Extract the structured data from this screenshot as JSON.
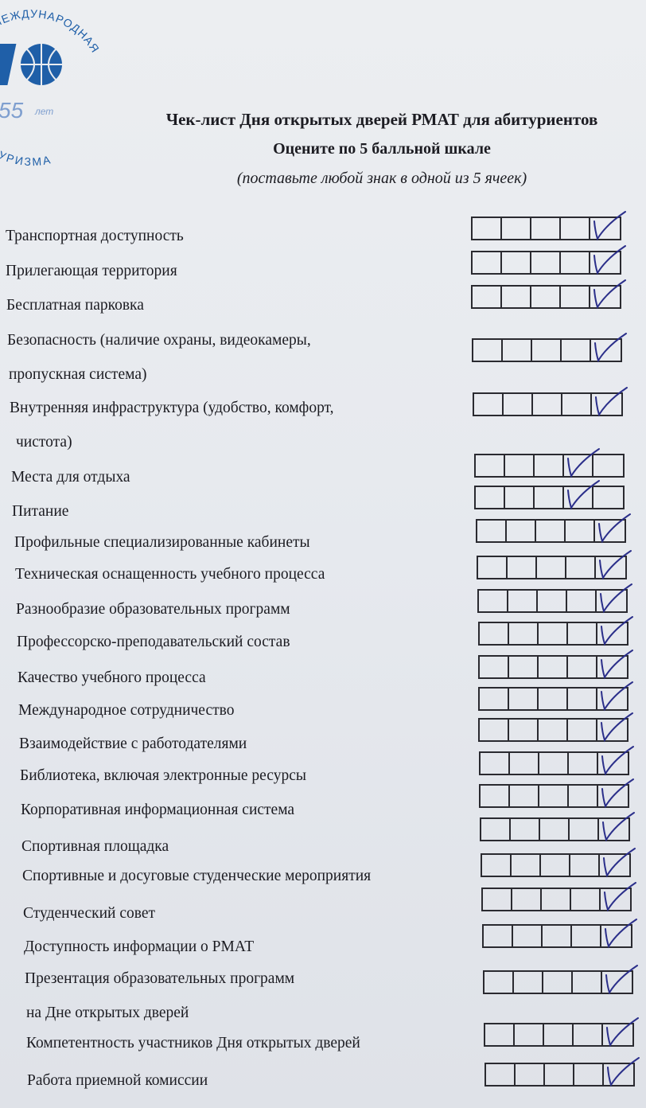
{
  "logo": {
    "arc_top": "МЕЖДУНАРОДНАЯ",
    "arc_bottom": "ИЯ ТУРИЗМА",
    "years": "55",
    "years_unit": "лет"
  },
  "header": {
    "title": "Чек-лист Дня открытых дверей РМАТ для абитуриентов",
    "subtitle": "Оцените по 5 балльной шкале",
    "instruction": "(поставьте любой знак в одной из 5 ячеек)"
  },
  "scale_max": 5,
  "ink_color": "#2b2f8a",
  "logo_color": "#1f5fa8",
  "items": [
    {
      "label": [
        "Транспортная доступность"
      ],
      "rating": 5
    },
    {
      "label": [
        "Прилегающая территория"
      ],
      "rating": 5
    },
    {
      "label": [
        "Бесплатная парковка"
      ],
      "rating": 5
    },
    {
      "label": [
        "Безопасность (наличие охраны, видеокамеры,",
        "пропускная система)"
      ],
      "rating": 5
    },
    {
      "label": [
        "Внутренняя инфраструктура (удобство, комфорт,",
        "чистота)"
      ],
      "rating": 5
    },
    {
      "label": [
        "Места для отдыха"
      ],
      "rating": 4
    },
    {
      "label": [
        "Питание"
      ],
      "rating": 4
    },
    {
      "label": [
        "Профильные специализированные кабинеты"
      ],
      "rating": 5
    },
    {
      "label": [
        "Техническая оснащенность учебного процесса"
      ],
      "rating": 5
    },
    {
      "label": [
        "Разнообразие образовательных программ"
      ],
      "rating": 5
    },
    {
      "label": [
        "Профессорско-преподавательский состав"
      ],
      "rating": 5
    },
    {
      "label": [
        "Качество учебного процесса"
      ],
      "rating": 5
    },
    {
      "label": [
        "Международное сотрудничество"
      ],
      "rating": 5
    },
    {
      "label": [
        "Взаимодействие с работодателями"
      ],
      "rating": 5
    },
    {
      "label": [
        "Библиотека, включая электронные ресурсы"
      ],
      "rating": 5
    },
    {
      "label": [
        "Корпоративная информационная система"
      ],
      "rating": 5
    },
    {
      "label": [
        "Спортивная площадка"
      ],
      "rating": 5
    },
    {
      "label": [
        "Спортивные и досуговые студенческие мероприятия"
      ],
      "rating": 5
    },
    {
      "label": [
        "Студенческий совет"
      ],
      "rating": 5
    },
    {
      "label": [
        "Доступность информации о РМАТ"
      ],
      "rating": 5
    },
    {
      "label": [
        "Презентация образовательных программ",
        "на Дне открытых дверей"
      ],
      "rating": 5
    },
    {
      "label": [
        "Компетентность участников Дня открытых дверей"
      ],
      "rating": 5
    },
    {
      "label": [
        "Работа приемной комиссии"
      ],
      "rating": 5
    }
  ]
}
